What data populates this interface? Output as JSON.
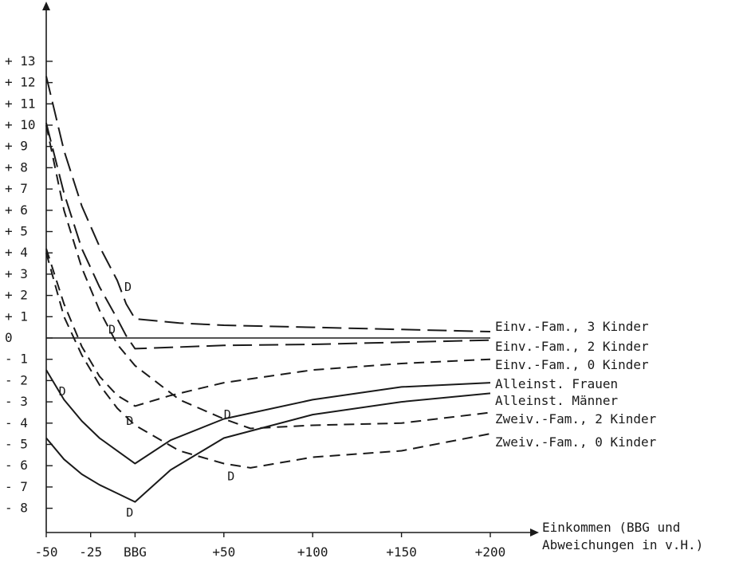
{
  "chart_data": {
    "type": "line",
    "title": "",
    "xlabel_lines": [
      "Einkommen (BBG und",
      "Abweichungen in v.H.)"
    ],
    "ylabel": "",
    "x_ticks": [
      -50,
      -25,
      0,
      50,
      100,
      150,
      200
    ],
    "x_tick_labels": [
      "-50",
      "-25",
      "BBG",
      "+50",
      "+100",
      "+150",
      "+200"
    ],
    "y_ticks": [
      13,
      12,
      11,
      10,
      9,
      8,
      7,
      6,
      5,
      4,
      3,
      2,
      1,
      0,
      -1,
      -2,
      -3,
      -4,
      -5,
      -6,
      -7,
      -8
    ],
    "y_tick_labels": [
      "+ 13",
      "+ 12",
      "+ 11",
      "+ 10",
      "+  9",
      "+  8",
      "+  7",
      "+  6",
      "+  5",
      "+  4",
      "+  3",
      "+  2",
      "+  1",
      "0",
      "-  1",
      "-  2",
      "-  3",
      "-  4",
      "-  5",
      "-  6",
      "-  7",
      "-  8"
    ],
    "xlim": [
      -50,
      200
    ],
    "ylim": [
      -8.5,
      13.5
    ],
    "zero_line": true,
    "grid": false,
    "legend": "inline labels at right end of each line",
    "series": [
      {
        "name": "Einv.-Fam., 3 Kinder",
        "dash": "long",
        "x": [
          -50,
          -40,
          -30,
          -20,
          -10,
          -5,
          0,
          25,
          50,
          100,
          150,
          200
        ],
        "y": [
          12.3,
          8.8,
          6.2,
          4.3,
          2.7,
          1.6,
          0.9,
          0.7,
          0.6,
          0.5,
          0.4,
          0.3
        ],
        "d_marker": {
          "x": -6,
          "y": 2.4
        }
      },
      {
        "name": "Einv.-Fam., 2 Kinder",
        "dash": "long",
        "x": [
          -50,
          -40,
          -30,
          -20,
          -10,
          -5,
          0,
          50,
          100,
          150,
          200
        ],
        "y": [
          10.1,
          6.8,
          4.2,
          2.4,
          0.9,
          0.1,
          -0.5,
          -0.35,
          -0.3,
          -0.2,
          -0.1
        ],
        "d_marker": {
          "x": -15,
          "y": 0.4
        }
      },
      {
        "name": "Einv.-Fam., 0 Kinder",
        "dash": "medium",
        "x": [
          -50,
          -40,
          -30,
          -20,
          -10,
          0,
          20,
          50,
          100,
          150,
          200
        ],
        "y": [
          4.2,
          1.6,
          -0.4,
          -1.8,
          -2.7,
          -3.2,
          -2.7,
          -2.1,
          -1.5,
          -1.2,
          -1.0
        ],
        "d_marker": {
          "x": -5,
          "y": -3.9
        }
      },
      {
        "name": "Alleinst. Frauen",
        "dash": "solid",
        "x": [
          -50,
          -40,
          -30,
          -20,
          -10,
          0,
          20,
          50,
          100,
          150,
          200
        ],
        "y": [
          -1.5,
          -2.9,
          -3.9,
          -4.7,
          -5.3,
          -5.9,
          -4.8,
          -3.8,
          -2.9,
          -2.3,
          -2.1
        ],
        "d_marker": {
          "x": -43,
          "y": -2.5
        }
      },
      {
        "name": "Alleinst. Männer",
        "dash": "solid",
        "x": [
          -50,
          -40,
          -30,
          -20,
          -10,
          0,
          20,
          50,
          100,
          150,
          200
        ],
        "y": [
          -4.7,
          -5.7,
          -6.4,
          -6.9,
          -7.3,
          -7.7,
          -6.2,
          -4.7,
          -3.6,
          -3.0,
          -2.6
        ],
        "d_marker": {
          "x": -5,
          "y": -8.2
        }
      },
      {
        "name": "Zweiv.-Fam., 2 Kinder",
        "dash": "medium",
        "x": [
          -50,
          -40,
          -30,
          -20,
          -10,
          0,
          25,
          50,
          65,
          100,
          150,
          200
        ],
        "y": [
          10.0,
          6.0,
          3.3,
          1.3,
          -0.3,
          -1.3,
          -2.9,
          -3.8,
          -4.25,
          -4.1,
          -4.0,
          -3.5
        ],
        "d_marker": {
          "x": 50,
          "y": -3.6
        }
      },
      {
        "name": "Zweiv.-Fam., 0 Kinder",
        "dash": "medium",
        "x": [
          -50,
          -40,
          -30,
          -20,
          -10,
          0,
          25,
          50,
          65,
          100,
          150,
          200
        ],
        "y": [
          4.0,
          1.0,
          -0.8,
          -2.2,
          -3.3,
          -4.1,
          -5.3,
          -5.9,
          -6.1,
          -5.6,
          -5.3,
          -4.5
        ],
        "d_marker": {
          "x": 52,
          "y": -6.5
        }
      }
    ]
  }
}
